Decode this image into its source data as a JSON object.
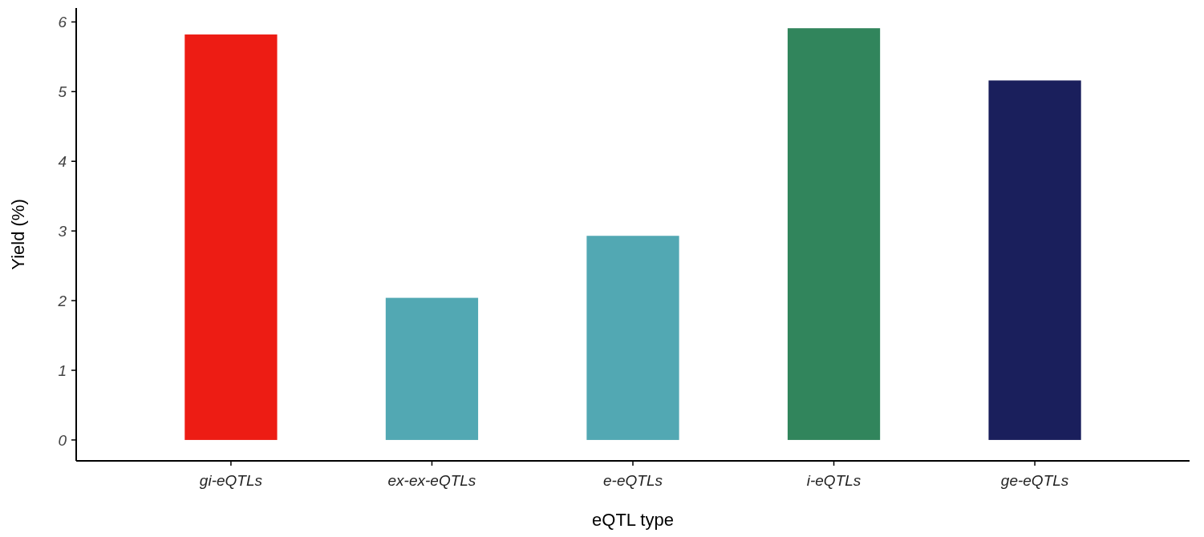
{
  "chart_data": {
    "type": "bar",
    "xlabel": "eQTL type",
    "ylabel": "Yield (%)",
    "categories": [
      "gi-eQTLs",
      "ex-ex-eQTLs",
      "e-eQTLs",
      "i-eQTLs",
      "ge-eQTLs"
    ],
    "values": [
      5.82,
      2.04,
      2.93,
      5.91,
      5.16
    ],
    "colors": [
      "#ed1c14",
      "#52a8b3",
      "#52a8b3",
      "#31855c",
      "#1a1f5c"
    ],
    "ylim": [
      -0.3,
      6.2
    ],
    "yticks": [
      0,
      1,
      2,
      3,
      4,
      5,
      6
    ]
  }
}
